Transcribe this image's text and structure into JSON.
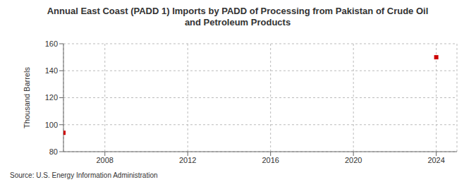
{
  "chart_data": {
    "type": "scatter",
    "title": "Annual East Coast (PADD 1) Imports by PADD of Processing from Pakistan of Crude Oil and Petroleum Products",
    "y_label": "Thousand Barrels",
    "source": "Source: U.S. Energy Information Administration",
    "x": [
      2006,
      2024
    ],
    "values": [
      94,
      150
    ],
    "color": "#cc0000",
    "marker": "square",
    "xlim": [
      2006,
      2025
    ],
    "xticks": [
      2008,
      2012,
      2016,
      2020,
      2024
    ],
    "ylim": [
      80,
      160
    ],
    "yticks": [
      80,
      100,
      120,
      140,
      160
    ],
    "grid": true
  }
}
